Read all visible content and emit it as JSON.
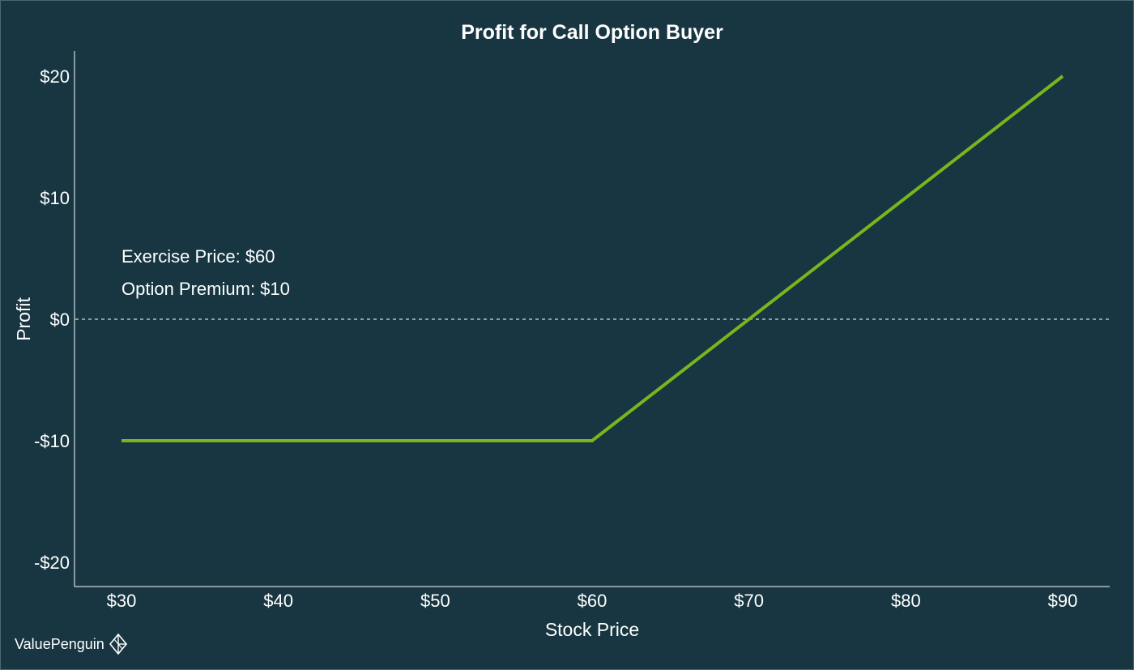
{
  "chart_data": {
    "type": "line",
    "title": "Profit for Call Option Buyer",
    "xlabel": "Stock Price",
    "ylabel": "Profit",
    "xlim": [
      30,
      90
    ],
    "ylim": [
      -20,
      20
    ],
    "x_ticks": [
      30,
      40,
      50,
      60,
      70,
      80,
      90
    ],
    "x_tick_labels": [
      "$30",
      "$40",
      "$50",
      "$60",
      "$70",
      "$80",
      "$90"
    ],
    "y_ticks": [
      20,
      10,
      0,
      -10,
      -20
    ],
    "y_tick_labels": [
      "$20",
      "$10",
      "$0",
      "-$10",
      "-$20"
    ],
    "series": [
      {
        "x": [
          30,
          60,
          90
        ],
        "y": [
          -10,
          -10,
          20
        ],
        "color": "#7ab51d"
      }
    ],
    "reference_line": {
      "y": 0,
      "style": "dashed",
      "color": "#cfd8dc"
    },
    "annotations": [
      "Exercise Price: $60",
      "Option Premium: $10"
    ],
    "grid": false,
    "background": "#173642"
  },
  "brand": {
    "name": "ValuePenguin",
    "logo_icon": "penguin-diamond-icon"
  }
}
